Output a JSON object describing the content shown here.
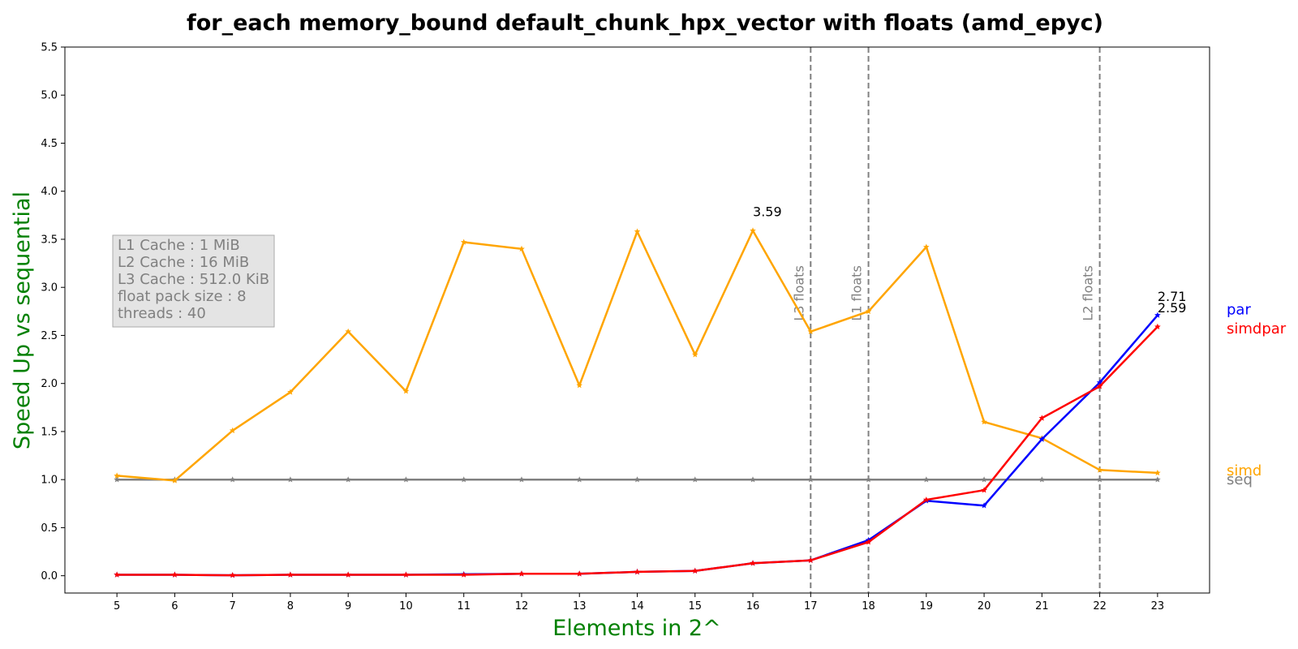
{
  "chart_data": {
    "type": "line",
    "title": "for_each memory_bound default_chunk_hpx_vector with floats  (amd_epyc)",
    "xlabel": "Elements in 2^",
    "ylabel": "Speed Up vs sequential",
    "x": [
      5,
      6,
      7,
      8,
      9,
      10,
      11,
      12,
      13,
      14,
      15,
      16,
      17,
      18,
      19,
      20,
      21,
      22,
      23
    ],
    "xlim": [
      4.1,
      23.9
    ],
    "ylim": [
      -0.18,
      5.5
    ],
    "yticks": [
      "0.0",
      "0.5",
      "1.0",
      "1.5",
      "2.0",
      "2.5",
      "3.0",
      "3.5",
      "4.0",
      "4.5",
      "5.0",
      "5.5"
    ],
    "ytick_values": [
      0.0,
      0.5,
      1.0,
      1.5,
      2.0,
      2.5,
      3.0,
      3.5,
      4.0,
      4.5,
      5.0,
      5.5
    ],
    "xticks": [
      "5",
      "6",
      "7",
      "8",
      "9",
      "10",
      "11",
      "12",
      "13",
      "14",
      "15",
      "16",
      "17",
      "18",
      "19",
      "20",
      "21",
      "22",
      "23"
    ],
    "grid": false,
    "legend": "right-side labels",
    "series": [
      {
        "name": "seq",
        "color": "#808080",
        "values": [
          1.0,
          1.0,
          1.0,
          1.0,
          1.0,
          1.0,
          1.0,
          1.0,
          1.0,
          1.0,
          1.0,
          1.0,
          1.0,
          1.0,
          1.0,
          1.0,
          1.0,
          1.0,
          1.0
        ]
      },
      {
        "name": "simd",
        "color": "#FFA500",
        "values": [
          1.04,
          0.99,
          1.51,
          1.91,
          2.54,
          1.92,
          3.47,
          3.4,
          1.98,
          3.58,
          2.3,
          3.59,
          2.54,
          2.75,
          3.42,
          1.6,
          1.43,
          1.1,
          1.07
        ]
      },
      {
        "name": "par",
        "color": "#0000FF",
        "values": [
          0.01,
          0.01,
          0.005,
          0.01,
          0.01,
          0.01,
          0.015,
          0.02,
          0.02,
          0.04,
          0.05,
          0.13,
          0.16,
          0.37,
          0.78,
          0.73,
          1.42,
          2.01,
          2.71
        ]
      },
      {
        "name": "simdpar",
        "color": "#FF0000",
        "values": [
          0.01,
          0.01,
          0.005,
          0.01,
          0.01,
          0.01,
          0.01,
          0.02,
          0.02,
          0.04,
          0.05,
          0.13,
          0.16,
          0.35,
          0.79,
          0.89,
          1.64,
          1.97,
          2.59
        ]
      }
    ],
    "annotations": [
      {
        "text": "3.59",
        "x": 16,
        "y": 3.79
      },
      {
        "text": "2.71",
        "x": 23,
        "y": 2.91
      },
      {
        "text": "2.59",
        "x": 23,
        "y": 2.79
      }
    ],
    "vlines": [
      {
        "x": 17,
        "label": "L3 floats"
      },
      {
        "x": 18,
        "label": "L1 floats"
      },
      {
        "x": 22,
        "label": "L2 floats"
      }
    ],
    "info_box": [
      "L1 Cache : 1 MiB",
      "L2 Cache : 16 MiB",
      "L3 Cache : 512.0 KiB",
      "float pack size : 8",
      "threads : 40"
    ],
    "colors": {
      "title": "#808080",
      "axis_label": "#008000",
      "vline": "#808080",
      "info_text": "#808080",
      "info_bg": "#E4E4E4"
    }
  }
}
